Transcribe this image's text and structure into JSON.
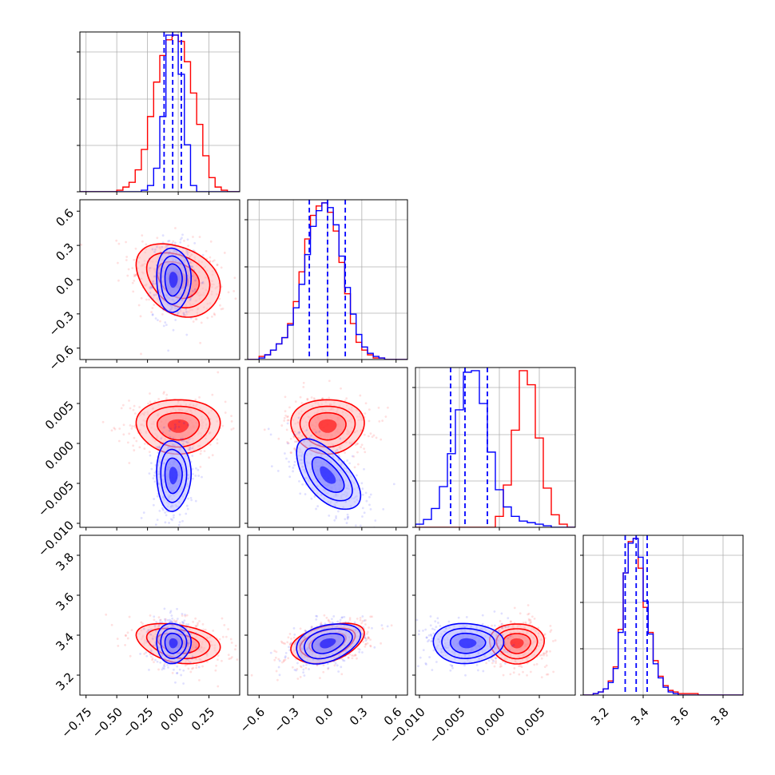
{
  "chart_data": {
    "type": "corner",
    "params": [
      {
        "range": [
          -0.8,
          0.5
        ],
        "ticks": [
          -0.75,
          -0.5,
          -0.25,
          0.0,
          0.25
        ],
        "tick_labels": [
          "−0.75",
          "−0.50",
          "−0.25",
          "0.00",
          "0.25"
        ]
      },
      {
        "range": [
          -0.7,
          0.7
        ],
        "ticks": [
          -0.6,
          -0.3,
          0.0,
          0.3,
          0.6
        ],
        "tick_labels": [
          "−0.6",
          "−0.3",
          "0.0",
          "0.3",
          "0.6"
        ]
      },
      {
        "range": [
          -0.0105,
          0.0095
        ],
        "ticks": [
          -0.01,
          -0.005,
          0.0,
          0.005
        ],
        "tick_labels": [
          "−0.010",
          "−0.005",
          "0.000",
          "0.005"
        ]
      },
      {
        "range": [
          3.1,
          3.9
        ],
        "ticks": [
          3.2,
          3.4,
          3.6,
          3.8
        ],
        "tick_labels": [
          "3.2",
          "3.4",
          "3.6",
          "3.8"
        ]
      }
    ],
    "series": [
      {
        "color": "#ff0000",
        "mean": [
          0.0,
          0.0,
          0.0022,
          3.36
        ],
        "sd": [
          0.17,
          0.16,
          0.0017,
          0.05
        ],
        "corr": [
          [
            1,
            -0.3,
            0,
            -0.3
          ],
          [
            -0.3,
            1,
            0,
            0.4
          ],
          [
            0,
            0,
            1,
            0
          ],
          [
            -0.3,
            0.4,
            0,
            1
          ]
        ],
        "histograms": [
          {
            "edges": [
              -0.8,
              -0.75,
              -0.7,
              -0.65,
              -0.6,
              -0.55,
              -0.5,
              -0.45,
              -0.4,
              -0.35,
              -0.3,
              -0.25,
              -0.2,
              -0.15,
              -0.1,
              -0.05,
              0.0,
              0.05,
              0.1,
              0.15,
              0.2,
              0.25,
              0.3,
              0.35,
              0.4,
              0.45,
              0.5
            ],
            "counts": [
              0,
              0,
              0,
              0,
              0,
              0,
              1,
              3,
              6,
              14,
              27,
              48,
              70,
              87,
              97,
              100,
              96,
              83,
              63,
              43,
              23,
              9,
              3,
              1,
              0,
              0
            ]
          },
          {
            "edges": [
              -0.7,
              -0.65,
              -0.6,
              -0.55,
              -0.5,
              -0.45,
              -0.4,
              -0.35,
              -0.3,
              -0.25,
              -0.2,
              -0.15,
              -0.1,
              -0.05,
              0.0,
              0.05,
              0.1,
              0.15,
              0.2,
              0.25,
              0.3,
              0.35,
              0.4,
              0.45,
              0.5,
              0.55,
              0.6,
              0.65,
              0.7
            ],
            "counts": [
              0,
              0,
              2,
              3,
              6,
              10,
              14,
              23,
              37,
              56,
              77,
              92,
              98,
              100,
              94,
              82,
              62,
              42,
              23,
              11,
              6,
              3,
              1,
              1,
              0,
              0,
              0,
              0
            ]
          },
          {
            "edges": [
              -0.0105,
              -0.0095,
              -0.0085,
              -0.0075,
              -0.0065,
              -0.0055,
              -0.0045,
              -0.0035,
              -0.0025,
              -0.0015,
              -0.0005,
              0.0005,
              0.0015,
              0.0025,
              0.0035,
              0.0045,
              0.0055,
              0.0065,
              0.0075,
              0.0085,
              0.0095
            ],
            "counts": [
              0,
              0,
              0,
              0,
              0,
              0,
              0,
              0,
              0,
              0,
              7,
              27,
              62,
              100,
              91,
              57,
              25,
              8,
              2,
              0
            ]
          },
          {
            "edges": [
              3.1,
              3.125,
              3.15,
              3.175,
              3.2,
              3.225,
              3.25,
              3.275,
              3.3,
              3.325,
              3.35,
              3.375,
              3.4,
              3.425,
              3.45,
              3.475,
              3.5,
              3.525,
              3.55,
              3.575,
              3.6,
              3.625,
              3.65,
              3.675,
              3.7,
              3.725,
              3.75,
              3.775,
              3.8,
              3.825,
              3.85,
              3.875,
              3.9
            ],
            "counts": [
              0,
              0,
              1,
              2,
              4,
              9,
              18,
              42,
              78,
              98,
              100,
              81,
              56,
              40,
              22,
              12,
              6,
              3,
              2,
              1,
              1,
              1,
              1,
              0,
              0,
              0,
              0,
              0,
              0,
              0,
              0,
              0
            ]
          }
        ]
      },
      {
        "color": "#0000ff",
        "mean": [
          -0.04,
          0.0,
          -0.004,
          3.36
        ],
        "sd": [
          0.07,
          0.14,
          0.0022,
          0.05
        ],
        "corr": [
          [
            1,
            0,
            0,
            0
          ],
          [
            0,
            1,
            -0.6,
            0.35
          ],
          [
            0,
            -0.6,
            1,
            0
          ],
          [
            0,
            0.35,
            0,
            1
          ]
        ],
        "quantiles": [
          [
            -0.115,
            -0.045,
            0.025
          ],
          [
            -0.16,
            0.0,
            0.155
          ],
          [
            -0.0061,
            -0.0043,
            -0.0015
          ],
          [
            3.31,
            3.365,
            3.42
          ]
        ],
        "histograms": [
          {
            "edges": [
              -0.8,
              -0.75,
              -0.7,
              -0.65,
              -0.6,
              -0.55,
              -0.5,
              -0.45,
              -0.4,
              -0.35,
              -0.3,
              -0.25,
              -0.2,
              -0.15,
              -0.1,
              -0.05,
              0.0,
              0.05,
              0.1,
              0.15,
              0.2,
              0.25,
              0.3,
              0.35,
              0.4,
              0.45,
              0.5
            ],
            "counts": [
              0,
              0,
              0,
              0,
              0,
              0,
              0,
              0,
              0,
              0,
              1,
              4,
              15,
              48,
              100,
              100,
              75,
              30,
              4,
              0,
              0,
              0,
              0,
              0,
              0,
              0
            ]
          },
          {
            "edges": [
              -0.7,
              -0.65,
              -0.6,
              -0.55,
              -0.5,
              -0.45,
              -0.4,
              -0.35,
              -0.3,
              -0.25,
              -0.2,
              -0.15,
              -0.1,
              -0.05,
              0.0,
              0.05,
              0.1,
              0.15,
              0.2,
              0.25,
              0.3,
              0.35,
              0.4,
              0.45,
              0.5,
              0.55,
              0.6,
              0.65,
              0.7
            ],
            "counts": [
              0,
              0,
              1,
              3,
              6,
              10,
              14,
              22,
              33,
              48,
              67,
              85,
              95,
              100,
              97,
              86,
              66,
              46,
              29,
              16,
              8,
              4,
              2,
              1,
              0,
              0,
              0,
              0
            ]
          },
          {
            "edges": [
              -0.0105,
              -0.0095,
              -0.0085,
              -0.0075,
              -0.0065,
              -0.0055,
              -0.0045,
              -0.0035,
              -0.0025,
              -0.0015,
              -0.0005,
              0.0005,
              0.0015,
              0.0025,
              0.0035,
              0.0045,
              0.0055,
              0.0065,
              0.0075,
              0.0085,
              0.0095
            ],
            "counts": [
              2,
              5,
              12,
              26,
              47,
              75,
              99,
              100,
              79,
              48,
              24,
              13,
              7,
              4,
              3,
              2,
              1,
              0,
              0,
              0
            ]
          },
          {
            "edges": [
              3.1,
              3.125,
              3.15,
              3.175,
              3.2,
              3.225,
              3.25,
              3.275,
              3.3,
              3.325,
              3.35,
              3.375,
              3.4,
              3.425,
              3.45,
              3.475,
              3.5,
              3.525,
              3.55,
              3.575,
              3.6,
              3.625,
              3.65,
              3.675,
              3.7,
              3.725,
              3.75,
              3.775,
              3.8,
              3.825,
              3.85,
              3.875,
              3.9
            ],
            "counts": [
              0,
              0,
              1,
              2,
              4,
              8,
              17,
              40,
              78,
              97,
              100,
              88,
              60,
              39,
              20,
              11,
              5,
              2,
              1,
              0,
              0,
              0,
              0,
              0,
              0,
              0,
              0,
              0,
              0,
              0,
              0,
              0
            ]
          }
        ]
      }
    ],
    "grid": true
  }
}
